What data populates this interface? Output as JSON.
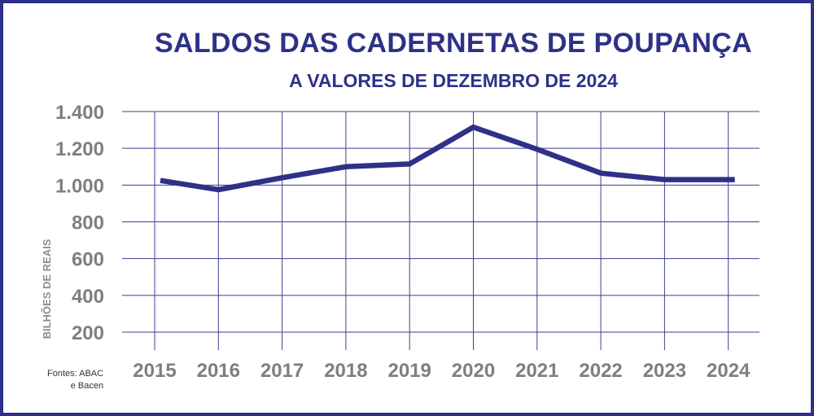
{
  "colors": {
    "accent": "#2e3187",
    "grid": "#3d3f8f",
    "tick": "#7f7f7f",
    "ylabel": "#8c8c8c"
  },
  "chart_data": {
    "type": "line",
    "title": "SALDOS DAS CADERNETAS DE POUPANÇA",
    "subtitle": "A VALORES DE DEZEMBRO DE 2024",
    "xlabel": "",
    "ylabel": "BILHÕES DE REAIS",
    "categories": [
      "2015",
      "2016",
      "2017",
      "2018",
      "2019",
      "2020",
      "2021",
      "2022",
      "2023",
      "2024"
    ],
    "series": [
      {
        "values": [
          1025,
          975,
          1040,
          1100,
          1115,
          1315,
          1195,
          1065,
          1030,
          1030
        ]
      }
    ],
    "y_ticks": [
      200,
      400,
      600,
      800,
      1000,
      1200,
      1400
    ],
    "y_tick_labels": [
      "200",
      "400",
      "600",
      "800",
      "1.000",
      "1.200",
      "1.400"
    ],
    "ylim": [
      200,
      1400
    ],
    "grid": true,
    "legend": "none"
  },
  "source": {
    "line1": "Fontes: ABAC",
    "line2": "e Bacen"
  }
}
